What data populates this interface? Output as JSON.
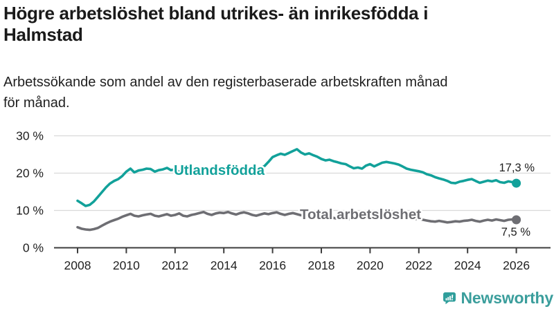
{
  "header": {
    "title_lines": [
      "Högre arbetslöshet bland utrikes- än inrikesfödda i",
      "Halmstad"
    ],
    "subtitle_lines": [
      "Arbetssökande som andel av den registerbaserade arbetskraften månad",
      "för månad."
    ]
  },
  "footer": {
    "brand": "Newsworthy",
    "logo_icon": "bar-chart-speech-bubble-icon"
  },
  "colors": {
    "accent_teal": "#12a19a",
    "series_gray": "#6e6e73",
    "axis": "#3c3c3c",
    "grid": "#d9d9d9",
    "text": "#222222",
    "brand_teal": "#3b9e9c"
  },
  "chart_data": {
    "type": "line",
    "title": "Högre arbetslöshet bland utrikes- än inrikesfödda i Halmstad",
    "subtitle": "Arbetssökande som andel av den registerbaserade arbetskraften månad för månad.",
    "xlabel": "",
    "ylabel": "",
    "grid": "horizontal",
    "legend_position": "inline-labels",
    "x_axis": {
      "ticks": [
        2008,
        2010,
        2012,
        2014,
        2016,
        2018,
        2020,
        2022,
        2024,
        2026
      ],
      "range": [
        2007.05,
        2027.4
      ]
    },
    "y_axis": {
      "ticks": [
        0,
        10,
        20,
        30
      ],
      "suffix": " %",
      "range": [
        0,
        32
      ]
    },
    "series": [
      {
        "name": "Utlandsfödda",
        "color": "#12a19a",
        "end_value": 17.3,
        "end_label": "17,3 %",
        "points": [
          [
            2008.0,
            12.6
          ],
          [
            2008.17,
            11.9
          ],
          [
            2008.33,
            11.2
          ],
          [
            2008.5,
            11.5
          ],
          [
            2008.67,
            12.4
          ],
          [
            2008.83,
            13.6
          ],
          [
            2009.0,
            14.9
          ],
          [
            2009.17,
            16.2
          ],
          [
            2009.33,
            17.2
          ],
          [
            2009.5,
            17.9
          ],
          [
            2009.67,
            18.4
          ],
          [
            2009.83,
            19.2
          ],
          [
            2010.0,
            20.4
          ],
          [
            2010.17,
            21.2
          ],
          [
            2010.33,
            20.2
          ],
          [
            2010.5,
            20.7
          ],
          [
            2010.67,
            20.9
          ],
          [
            2010.83,
            21.2
          ],
          [
            2011.0,
            21.1
          ],
          [
            2011.17,
            20.4
          ],
          [
            2011.33,
            20.8
          ],
          [
            2011.5,
            21.0
          ],
          [
            2011.67,
            21.4
          ],
          [
            2011.83,
            20.8
          ],
          [
            2012.0,
            21.0
          ],
          [
            2012.17,
            20.4
          ],
          [
            2012.33,
            20.1
          ],
          [
            2012.5,
            19.9
          ],
          [
            2012.67,
            20.5
          ],
          [
            2012.83,
            20.2
          ],
          [
            2013.0,
            20.8
          ],
          [
            2013.17,
            21.0
          ],
          [
            2013.33,
            20.5
          ],
          [
            2013.5,
            20.8
          ],
          [
            2013.67,
            21.1
          ],
          [
            2013.83,
            20.6
          ],
          [
            2014.0,
            21.0
          ],
          [
            2014.17,
            21.3
          ],
          [
            2014.33,
            20.8
          ],
          [
            2014.5,
            20.5
          ],
          [
            2014.67,
            20.9
          ],
          [
            2014.83,
            20.6
          ],
          [
            2015.0,
            20.9
          ],
          [
            2015.17,
            20.6
          ],
          [
            2015.33,
            21.0
          ],
          [
            2015.5,
            21.3
          ],
          [
            2015.67,
            21.9
          ],
          [
            2015.83,
            23.0
          ],
          [
            2016.0,
            24.3
          ],
          [
            2016.17,
            24.8
          ],
          [
            2016.33,
            25.2
          ],
          [
            2016.5,
            24.9
          ],
          [
            2016.67,
            25.4
          ],
          [
            2016.83,
            25.9
          ],
          [
            2017.0,
            26.4
          ],
          [
            2017.17,
            25.5
          ],
          [
            2017.33,
            25.0
          ],
          [
            2017.5,
            25.3
          ],
          [
            2017.67,
            24.8
          ],
          [
            2017.83,
            24.4
          ],
          [
            2018.0,
            23.8
          ],
          [
            2018.17,
            23.4
          ],
          [
            2018.33,
            23.6
          ],
          [
            2018.5,
            23.2
          ],
          [
            2018.67,
            22.9
          ],
          [
            2018.83,
            22.6
          ],
          [
            2019.0,
            22.4
          ],
          [
            2019.17,
            21.8
          ],
          [
            2019.33,
            21.3
          ],
          [
            2019.5,
            21.5
          ],
          [
            2019.67,
            21.2
          ],
          [
            2019.83,
            22.0
          ],
          [
            2020.0,
            22.4
          ],
          [
            2020.17,
            21.8
          ],
          [
            2020.33,
            22.3
          ],
          [
            2020.5,
            22.8
          ],
          [
            2020.67,
            23.0
          ],
          [
            2020.83,
            22.8
          ],
          [
            2021.0,
            22.6
          ],
          [
            2021.17,
            22.3
          ],
          [
            2021.33,
            21.8
          ],
          [
            2021.5,
            21.2
          ],
          [
            2021.67,
            20.9
          ],
          [
            2021.83,
            20.7
          ],
          [
            2022.0,
            20.5
          ],
          [
            2022.17,
            20.2
          ],
          [
            2022.33,
            19.7
          ],
          [
            2022.5,
            19.4
          ],
          [
            2022.67,
            18.9
          ],
          [
            2022.83,
            18.6
          ],
          [
            2023.0,
            18.3
          ],
          [
            2023.17,
            17.9
          ],
          [
            2023.33,
            17.4
          ],
          [
            2023.5,
            17.3
          ],
          [
            2023.67,
            17.7
          ],
          [
            2023.83,
            17.9
          ],
          [
            2024.0,
            18.2
          ],
          [
            2024.17,
            18.4
          ],
          [
            2024.33,
            17.9
          ],
          [
            2024.5,
            17.4
          ],
          [
            2024.67,
            17.7
          ],
          [
            2024.83,
            18.0
          ],
          [
            2025.0,
            17.8
          ],
          [
            2025.17,
            18.1
          ],
          [
            2025.33,
            17.6
          ],
          [
            2025.5,
            17.4
          ],
          [
            2025.67,
            17.8
          ],
          [
            2025.83,
            17.6
          ],
          [
            2026.0,
            17.3
          ]
        ]
      },
      {
        "name": "Total arbetslöshet",
        "color": "#6e6e73",
        "end_value": 7.5,
        "end_label": "7,5 %",
        "points": [
          [
            2008.0,
            5.5
          ],
          [
            2008.17,
            5.1
          ],
          [
            2008.33,
            4.9
          ],
          [
            2008.5,
            4.8
          ],
          [
            2008.67,
            5.0
          ],
          [
            2008.83,
            5.3
          ],
          [
            2009.0,
            5.9
          ],
          [
            2009.17,
            6.5
          ],
          [
            2009.33,
            7.0
          ],
          [
            2009.5,
            7.4
          ],
          [
            2009.67,
            7.8
          ],
          [
            2009.83,
            8.3
          ],
          [
            2010.0,
            8.7
          ],
          [
            2010.17,
            9.1
          ],
          [
            2010.33,
            8.6
          ],
          [
            2010.5,
            8.4
          ],
          [
            2010.67,
            8.7
          ],
          [
            2010.83,
            8.9
          ],
          [
            2011.0,
            9.1
          ],
          [
            2011.17,
            8.6
          ],
          [
            2011.33,
            8.4
          ],
          [
            2011.5,
            8.7
          ],
          [
            2011.67,
            9.0
          ],
          [
            2011.83,
            8.6
          ],
          [
            2012.0,
            8.8
          ],
          [
            2012.17,
            9.2
          ],
          [
            2012.33,
            8.6
          ],
          [
            2012.5,
            8.4
          ],
          [
            2012.67,
            8.8
          ],
          [
            2012.83,
            9.0
          ],
          [
            2013.0,
            9.3
          ],
          [
            2013.17,
            9.6
          ],
          [
            2013.33,
            9.1
          ],
          [
            2013.5,
            8.8
          ],
          [
            2013.67,
            9.2
          ],
          [
            2013.83,
            9.4
          ],
          [
            2014.0,
            9.3
          ],
          [
            2014.17,
            9.6
          ],
          [
            2014.33,
            9.2
          ],
          [
            2014.5,
            8.9
          ],
          [
            2014.67,
            9.3
          ],
          [
            2014.83,
            9.5
          ],
          [
            2015.0,
            9.2
          ],
          [
            2015.17,
            8.8
          ],
          [
            2015.33,
            8.6
          ],
          [
            2015.5,
            8.9
          ],
          [
            2015.67,
            9.2
          ],
          [
            2015.83,
            9.0
          ],
          [
            2016.0,
            9.3
          ],
          [
            2016.17,
            9.5
          ],
          [
            2016.33,
            9.1
          ],
          [
            2016.5,
            8.8
          ],
          [
            2016.67,
            9.1
          ],
          [
            2016.83,
            9.3
          ],
          [
            2017.0,
            9.0
          ],
          [
            2017.17,
            8.7
          ],
          [
            2017.33,
            8.9
          ],
          [
            2017.5,
            8.6
          ],
          [
            2017.67,
            8.4
          ],
          [
            2017.83,
            8.6
          ],
          [
            2018.0,
            8.4
          ],
          [
            2018.17,
            8.1
          ],
          [
            2018.33,
            8.3
          ],
          [
            2018.5,
            8.0
          ],
          [
            2018.67,
            7.8
          ],
          [
            2018.83,
            8.0
          ],
          [
            2019.0,
            7.9
          ],
          [
            2019.17,
            7.7
          ],
          [
            2019.33,
            7.9
          ],
          [
            2019.5,
            8.1
          ],
          [
            2019.67,
            7.9
          ],
          [
            2019.83,
            8.1
          ],
          [
            2020.0,
            8.3
          ],
          [
            2020.17,
            8.8
          ],
          [
            2020.33,
            9.6
          ],
          [
            2020.5,
            9.4
          ],
          [
            2020.67,
            9.2
          ],
          [
            2020.83,
            9.0
          ],
          [
            2021.0,
            8.9
          ],
          [
            2021.17,
            8.6
          ],
          [
            2021.33,
            8.3
          ],
          [
            2021.5,
            8.0
          ],
          [
            2021.67,
            7.8
          ],
          [
            2021.83,
            7.7
          ],
          [
            2022.0,
            7.8
          ],
          [
            2022.17,
            7.5
          ],
          [
            2022.33,
            7.3
          ],
          [
            2022.5,
            7.1
          ],
          [
            2022.67,
            7.0
          ],
          [
            2022.83,
            7.2
          ],
          [
            2023.0,
            7.0
          ],
          [
            2023.17,
            6.8
          ],
          [
            2023.33,
            6.9
          ],
          [
            2023.5,
            7.1
          ],
          [
            2023.67,
            7.0
          ],
          [
            2023.83,
            7.2
          ],
          [
            2024.0,
            7.3
          ],
          [
            2024.17,
            7.5
          ],
          [
            2024.33,
            7.2
          ],
          [
            2024.5,
            7.0
          ],
          [
            2024.67,
            7.3
          ],
          [
            2024.83,
            7.5
          ],
          [
            2025.0,
            7.3
          ],
          [
            2025.17,
            7.6
          ],
          [
            2025.33,
            7.4
          ],
          [
            2025.5,
            7.2
          ],
          [
            2025.67,
            7.5
          ],
          [
            2025.83,
            7.6
          ],
          [
            2026.0,
            7.5
          ]
        ]
      }
    ]
  }
}
